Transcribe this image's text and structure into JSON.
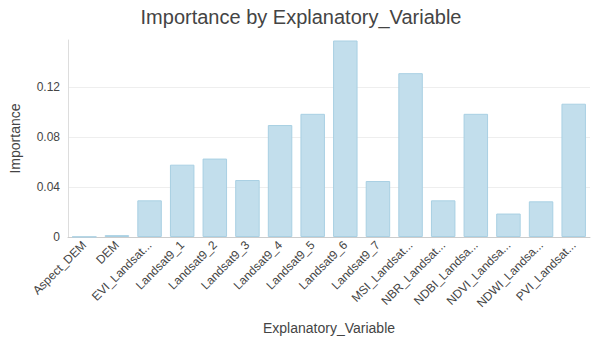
{
  "chart_data": {
    "type": "bar",
    "title": "Importance by Explanatory_Variable",
    "x_label": "Explanatory_Variable",
    "y_label": "Importance",
    "categories": [
      "Aspect_DEM",
      "DEM",
      "EVI_Landsat...",
      "Landsat9_1",
      "Landsat9_2",
      "Landsat9_3",
      "Landsat9_4",
      "Landsat9_5",
      "Landsat9_6",
      "Landsat9_7",
      "MSI_Landsat...",
      "NBR_Landsat...",
      "NDBI_Landsa...",
      "NDVI_Landsa...",
      "NDWI_Landsa...",
      "PVI_Landsat..."
    ],
    "values": [
      0.0002,
      0.0015,
      0.0294,
      0.058,
      0.0629,
      0.0457,
      0.0898,
      0.0988,
      0.1576,
      0.0449,
      0.1314,
      0.0294,
      0.0988,
      0.0188,
      0.0286,
      0.1069
    ],
    "color": "#c2deec",
    "ylim": [
      0,
      0.158
    ],
    "yticks": [
      0,
      0.04,
      0.08,
      0.12
    ],
    "grid": true
  }
}
